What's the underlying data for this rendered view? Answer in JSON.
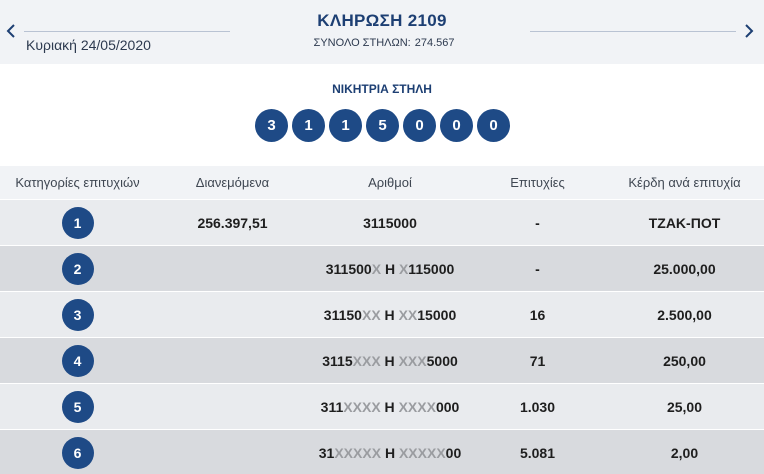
{
  "header": {
    "title": "ΚΛΗΡΩΣΗ 2109",
    "date": "Κυριακή 24/05/2020",
    "total_label": "ΣΥΝΟΛΟ ΣΤΗΛΩΝ:",
    "total_value": "274.567"
  },
  "winning": {
    "title": "ΝΙΚΗΤΡΙΑ ΣΤΗΛΗ",
    "digits": [
      "3",
      "1",
      "1",
      "5",
      "0",
      "0",
      "0"
    ]
  },
  "table": {
    "headers": [
      "Κατηγορίες επιτυχιών",
      "Διανεμόμενα",
      "Αριθμοί",
      "Επιτυχίες",
      "Κέρδη ανά επιτυχία"
    ],
    "rows": [
      {
        "category": "1",
        "distributed": "256.397,51",
        "numbers": "3115000",
        "winners": "-",
        "prize": "ΤΖΑΚ-ΠΟΤ"
      },
      {
        "category": "2",
        "distributed": "",
        "numbers": "311500X Η X115000",
        "winners": "-",
        "prize": "25.000,00"
      },
      {
        "category": "3",
        "distributed": "",
        "numbers": "31150XX Η XX15000",
        "winners": "16",
        "prize": "2.500,00"
      },
      {
        "category": "4",
        "distributed": "",
        "numbers": "3115XXX Η XXX5000",
        "winners": "71",
        "prize": "250,00"
      },
      {
        "category": "5",
        "distributed": "",
        "numbers": "311XXXX Η XXXX000",
        "winners": "1.030",
        "prize": "25,00"
      },
      {
        "category": "6",
        "distributed": "",
        "numbers": "31XXXXX Η XXXXX00",
        "winners": "5.081",
        "prize": "2,00"
      }
    ]
  },
  "colors": {
    "navy": "#1e4a86",
    "title": "#1d3f73",
    "mask_x": "#9a9ca0"
  },
  "icons": {
    "prev": "chevron-left-icon",
    "next": "chevron-right-icon"
  }
}
